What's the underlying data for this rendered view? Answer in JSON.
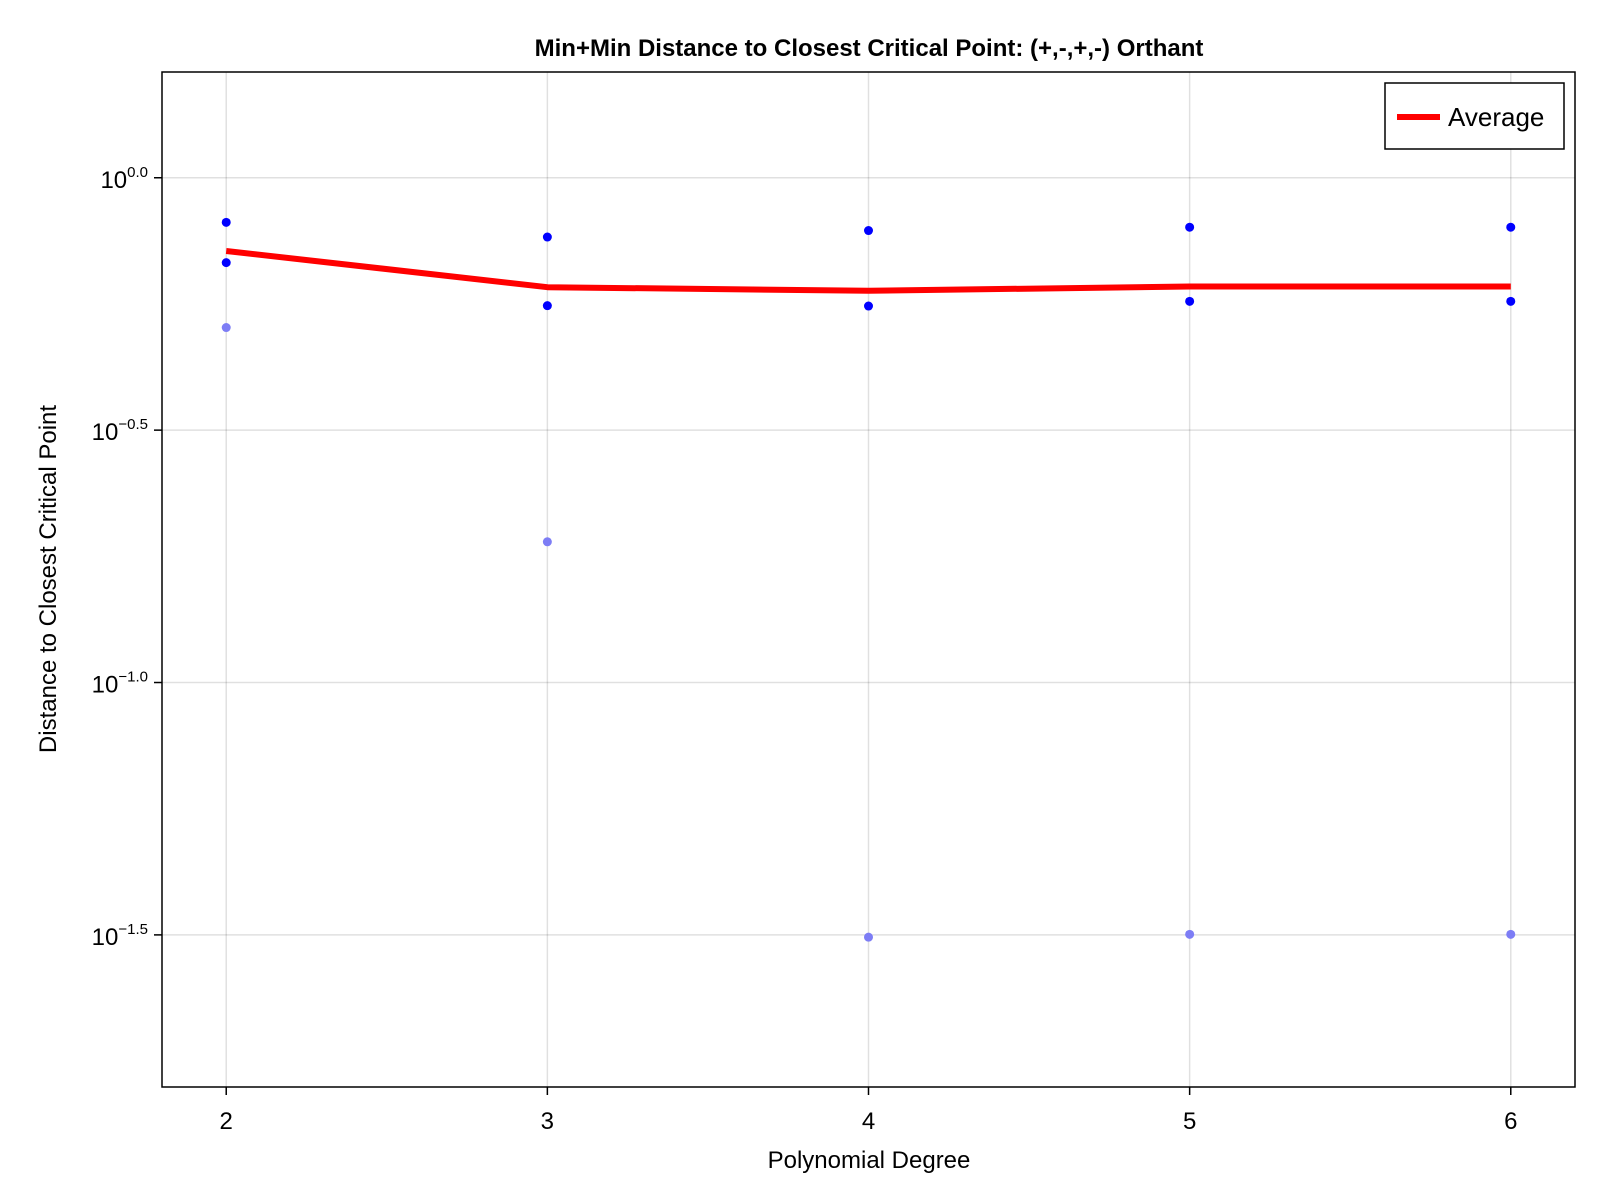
{
  "chart_data": {
    "type": "scatter",
    "title": "Min+Min Distance to Closest Critical Point: (+,-,+,-) Orthant",
    "xlabel": "Polynomial Degree",
    "ylabel": "Distance to Closest Critical Point",
    "x_ticks": [
      2,
      3,
      4,
      5,
      6
    ],
    "xlim": [
      1.8,
      6.2
    ],
    "y_scale": "log10",
    "y_ticks": [
      {
        "value": 1.0,
        "base": "10",
        "exp": "0.0"
      },
      {
        "value": 0.31623,
        "base": "10",
        "exp": "−0.5"
      },
      {
        "value": 0.1,
        "base": "10",
        "exp": "−1.0"
      },
      {
        "value": 0.031623,
        "base": "10",
        "exp": "−1.5"
      }
    ],
    "ylim": [
      0.0158,
      1.62
    ],
    "grid": true,
    "legend": {
      "position": "top-right",
      "entries": [
        {
          "label": "Average",
          "color": "#ff0000"
        }
      ]
    },
    "series": [
      {
        "name": "Average",
        "style": "line",
        "color": "#ff0000",
        "x": [
          2,
          3,
          4,
          5,
          6
        ],
        "y": [
          0.716,
          0.607,
          0.597,
          0.609,
          0.609
        ]
      },
      {
        "style": "points",
        "color": "#0000ff",
        "x": [
          2,
          2,
          3,
          3,
          4,
          4,
          5,
          5,
          6,
          6
        ],
        "y": [
          0.816,
          0.679,
          0.763,
          0.558,
          0.786,
          0.557,
          0.798,
          0.569,
          0.798,
          0.569
        ]
      },
      {
        "style": "points",
        "color": "#7d7df5",
        "x": [
          2,
          3,
          4,
          5,
          6
        ],
        "y": [
          0.505,
          0.19,
          0.0313,
          0.0317,
          0.0317
        ]
      }
    ]
  }
}
